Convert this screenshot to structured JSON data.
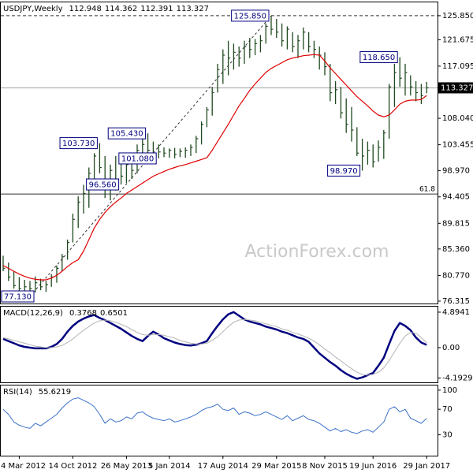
{
  "chart_data": [
    {
      "type": "ohlc",
      "title": "USDJPY,Weekly",
      "open": 112.948,
      "watermark": "ActionForex.com",
      "categories": [
        null,
        null,
        null,
        "4 Mar 2012",
        null,
        null,
        null,
        null,
        null,
        null,
        null,
        null,
        null,
        "14 Oct 2012",
        null,
        null,
        null,
        null,
        null,
        null,
        null,
        null,
        null,
        "26 May 2013",
        null,
        null,
        null,
        null,
        null,
        null,
        null,
        "5 Jan 2014",
        null,
        null,
        null,
        null,
        null,
        null,
        null,
        null,
        null,
        "17 Aug 2014",
        null,
        null,
        null,
        null,
        null,
        null,
        null,
        null,
        null,
        "29 Mar 2015",
        null,
        null,
        null,
        null,
        null,
        null,
        null,
        null,
        "8 Nov 2015",
        null,
        null,
        null,
        null,
        null,
        null,
        null,
        null,
        "19 Jun 2016",
        null,
        null,
        null,
        null,
        null,
        null,
        null,
        null,
        null,
        "29 Jan 2017"
      ],
      "series": [
        {
          "color": "#1f4a1f",
          "high": [
            84.2,
            83.0,
            81.5,
            80.5,
            80.0,
            79.8,
            80.6,
            80.2,
            79.8,
            81.0,
            82.5,
            84.5,
            87.0,
            91.5,
            94.5,
            96.5,
            99.5,
            102.0,
            103.73,
            101.5,
            100.0,
            101.5,
            100.8,
            101.0,
            101.5,
            103.5,
            104.5,
            105.43,
            104.0,
            103.5,
            103.0,
            102.8,
            102.9,
            102.8,
            103.0,
            103.5,
            105.0,
            107.5,
            110.0,
            113.5,
            117.5,
            120.0,
            121.5,
            121.0,
            120.5,
            121.5,
            122.0,
            121.8,
            122.5,
            124.5,
            125.85,
            125.3,
            124.5,
            124.0,
            123.0,
            122.5,
            123.8,
            123.0,
            121.5,
            120.5,
            119.5,
            117.5,
            114.5,
            113.5,
            111.5,
            110.0,
            106.5,
            104.5,
            104.0,
            103.5,
            104.2,
            106.0,
            114.0,
            117.5,
            118.65,
            117.5,
            115.5,
            114.5,
            114.0,
            114.362
          ],
          "low": [
            81.5,
            79.8,
            78.5,
            77.6,
            77.4,
            77.13,
            77.8,
            78.2,
            77.9,
            78.8,
            79.5,
            81.5,
            83.5,
            86.5,
            89.0,
            91.5,
            92.5,
            96.5,
            98.5,
            94.2,
            93.8,
            95.5,
            96.56,
            96.8,
            97.5,
            98.5,
            101.2,
            102.0,
            101.5,
            101.08,
            101.3,
            101.2,
            101.1,
            101.3,
            101.2,
            101.5,
            102.0,
            103.5,
            106.5,
            108.5,
            112.5,
            114.0,
            115.5,
            116.5,
            117.0,
            117.5,
            118.5,
            119.0,
            119.5,
            121.0,
            122.5,
            122.0,
            120.5,
            120.0,
            119.5,
            118.5,
            120.0,
            119.5,
            118.5,
            116.5,
            115.5,
            111.0,
            110.5,
            108.0,
            105.5,
            104.0,
            101.5,
            98.97,
            100.0,
            99.5,
            100.5,
            101.0,
            104.5,
            110.0,
            113.5,
            112.0,
            112.0,
            111.0,
            110.5,
            112.391
          ],
          "close": [
            82.0,
            80.5,
            79.0,
            78.5,
            78.8,
            78.5,
            79.5,
            78.8,
            79.2,
            80.5,
            82.0,
            84.0,
            86.5,
            90.5,
            93.5,
            95.0,
            98.5,
            101.5,
            99.5,
            97.0,
            99.0,
            97.5,
            98.0,
            100.0,
            99.0,
            102.5,
            103.5,
            102.5,
            102.0,
            102.2,
            102.0,
            102.5,
            101.8,
            102.3,
            102.5,
            103.0,
            104.5,
            107.0,
            109.5,
            112.5,
            116.5,
            119.0,
            118.5,
            119.5,
            118.5,
            120.5,
            120.0,
            121.0,
            121.5,
            124.0,
            123.5,
            123.0,
            121.5,
            123.5,
            120.5,
            121.5,
            123.0,
            120.5,
            120.0,
            119.0,
            117.0,
            112.5,
            113.0,
            109.0,
            107.0,
            106.0,
            102.0,
            101.5,
            102.5,
            100.5,
            103.0,
            105.5,
            113.5,
            116.0,
            115.0,
            116.0,
            113.5,
            112.5,
            112.0,
            113.327
          ]
        },
        {
          "color": "#e00000",
          "values": [
            82.5,
            82.0,
            81.5,
            81.0,
            80.6,
            80.3,
            80.1,
            80.0,
            80.0,
            80.3,
            80.8,
            81.5,
            82.3,
            83.0,
            83.5,
            85.0,
            87.0,
            89.0,
            90.5,
            91.7,
            92.7,
            93.5,
            94.2,
            95.0,
            95.6,
            96.2,
            96.8,
            97.4,
            98.0,
            98.4,
            98.8,
            99.2,
            99.5,
            99.8,
            100.0,
            100.3,
            100.6,
            100.9,
            101.2,
            102.5,
            104.0,
            105.5,
            107.0,
            108.6,
            110.2,
            111.5,
            112.9,
            114.0,
            115.0,
            116.0,
            116.7,
            117.2,
            117.7,
            118.2,
            118.5,
            118.7,
            118.9,
            119.0,
            119.1,
            119.0,
            118.0,
            116.8,
            115.8,
            114.8,
            113.8,
            112.8,
            111.8,
            111.0,
            110.2,
            109.3,
            108.6,
            108.3,
            108.6,
            109.5,
            110.5,
            111.0,
            111.2,
            111.2,
            111.3,
            112.0
          ]
        }
      ],
      "annotations": [
        {
          "label": "125.850",
          "value": 125.85
        },
        {
          "label": "118.650",
          "value": 118.65
        },
        {
          "label": "103.730",
          "value": 103.73
        },
        {
          "label": "105.430",
          "value": 105.43
        },
        {
          "label": "101.080",
          "value": 101.08
        },
        {
          "label": "96.560",
          "value": 96.56
        },
        {
          "label": "98.970",
          "value": 98.97
        },
        {
          "label": "77.130",
          "value": 77.13
        }
      ],
      "hlines": [
        {
          "value": 125.85,
          "dashed": true,
          "color": "#333333"
        },
        {
          "value": 94.9,
          "label": "61.8",
          "color": "#333333"
        }
      ],
      "ylim": [
        75.9,
        128.3
      ],
      "yticks": [
        {
          "value": 125.85,
          "label": "125.850"
        },
        121.675,
        117.095,
        {
          "value": 108.04,
          "label": "108.040"
        },
        103.455,
        {
          "value": 98.97,
          "label": "98.970"
        },
        94.405,
        89.815,
        {
          "value": 85.36,
          "label": "85.360"
        },
        {
          "value": 80.77,
          "label": "80.770"
        },
        76.315
      ]
    },
    {
      "type": "line",
      "title": "MACD(12,26,9)",
      "series": [
        {
          "color": "#000080",
          "width": 2.5,
          "values": [
            1.2,
            0.9,
            0.6,
            0.3,
            0.1,
            0.0,
            -0.1,
            -0.1,
            -0.1,
            0.1,
            0.5,
            1.2,
            2.2,
            3.0,
            3.6,
            4.0,
            4.3,
            4.5,
            4.1,
            3.8,
            3.4,
            3.0,
            2.6,
            2.1,
            1.6,
            1.2,
            0.9,
            1.6,
            2.2,
            1.8,
            1.3,
            1.0,
            0.7,
            0.5,
            0.35,
            0.3,
            0.4,
            0.6,
            0.9,
            2.0,
            3.0,
            3.9,
            4.6,
            4.9,
            4.4,
            3.9,
            3.6,
            3.4,
            3.2,
            2.9,
            2.7,
            2.5,
            2.2,
            2.0,
            1.7,
            1.4,
            1.2,
            0.8,
            0.0,
            -0.8,
            -1.4,
            -2.0,
            -2.5,
            -3.1,
            -3.6,
            -4.0,
            -4.3,
            -4.1,
            -3.8,
            -3.5,
            -2.5,
            -1.4,
            0.5,
            2.3,
            3.4,
            3.0,
            2.4,
            1.4,
            0.7,
            0.3768
          ]
        },
        {
          "color": "#b4b4b4",
          "width": 1,
          "values": [
            1.4,
            1.2,
            1.0,
            0.8,
            0.6,
            0.4,
            0.2,
            0.1,
            0.0,
            0.0,
            0.1,
            0.3,
            0.7,
            1.2,
            1.8,
            2.4,
            2.9,
            3.4,
            3.7,
            3.8,
            3.7,
            3.5,
            3.2,
            2.9,
            2.5,
            2.1,
            1.8,
            1.7,
            1.8,
            1.8,
            1.7,
            1.5,
            1.3,
            1.0,
            0.8,
            0.6,
            0.5,
            0.5,
            0.6,
            1.0,
            1.5,
            2.2,
            2.9,
            3.5,
            3.8,
            3.9,
            3.8,
            3.7,
            3.5,
            3.3,
            3.1,
            2.9,
            2.6,
            2.4,
            2.1,
            1.9,
            1.6,
            1.3,
            0.9,
            0.4,
            -0.2,
            -0.7,
            -1.3,
            -1.8,
            -2.4,
            -2.9,
            -3.4,
            -3.7,
            -3.8,
            -3.7,
            -3.4,
            -2.8,
            -1.8,
            -0.6,
            0.6,
            1.6,
            2.1,
            2.0,
            1.4,
            0.6501
          ]
        }
      ],
      "ylim": [
        -4.79,
        5.76
      ],
      "yticks": [
        4.8941,
        {
          "value": 0,
          "label": "0.00"
        },
        -4.1929
      ]
    },
    {
      "type": "line",
      "title": "RSI(14)",
      "series": [
        {
          "color": "#3a70c8",
          "width": 1,
          "values": [
            70,
            62,
            50,
            45,
            42,
            40,
            48,
            44,
            50,
            56,
            62,
            72,
            80,
            86,
            88,
            84,
            80,
            74,
            62,
            48,
            55,
            50,
            52,
            58,
            55,
            64,
            66,
            60,
            56,
            54,
            52,
            55,
            50,
            52,
            55,
            58,
            62,
            68,
            72,
            74,
            78,
            70,
            68,
            72,
            62,
            66,
            64,
            60,
            62,
            66,
            62,
            58,
            54,
            60,
            52,
            56,
            60,
            54,
            52,
            48,
            42,
            36,
            40,
            35,
            38,
            34,
            32,
            36,
            38,
            34,
            42,
            50,
            70,
            74,
            66,
            70,
            56,
            52,
            48,
            55.6219
          ]
        }
      ],
      "ylim": [
        -2.7,
        108.5
      ],
      "yticks": [
        100,
        70,
        30
      ]
    }
  ]
}
